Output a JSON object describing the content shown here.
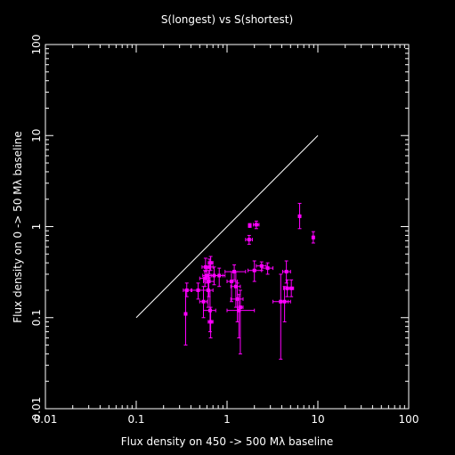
{
  "chart_data": {
    "type": "scatter",
    "title": "S(longest) vs S(shortest)",
    "xlabel": "Flux density on 450 -> 500 Mλ baseline",
    "ylabel": "Flux density on 0 -> 50 Mλ baseline",
    "x_scale": "log",
    "y_scale": "log",
    "xlim": [
      0.01,
      100
    ],
    "ylim": [
      0.01,
      100
    ],
    "x_ticks": [
      "0.01",
      "0.1",
      "1",
      "10",
      "100"
    ],
    "y_ticks": [
      "0.01",
      "0.1",
      "1",
      "10",
      "100"
    ],
    "reference_line": {
      "x": [
        0.1,
        10
      ],
      "y": [
        0.1,
        10
      ],
      "color": "#ffffff"
    },
    "marker_color": "#ff00ff",
    "background": "#000000",
    "foreground": "#ffffff",
    "points": [
      {
        "x": 6.3,
        "y": 1.3,
        "xerr": [
          6.2,
          6.4
        ],
        "yerr": [
          0.95,
          1.8
        ]
      },
      {
        "x": 8.9,
        "y": 0.76,
        "xerr": [
          8.7,
          9.1
        ],
        "yerr": [
          0.66,
          0.88
        ]
      },
      {
        "x": 2.1,
        "y": 1.05,
        "xerr": [
          1.95,
          2.25
        ],
        "yerr": [
          0.95,
          1.15
        ]
      },
      {
        "x": 1.78,
        "y": 1.03,
        "xerr": [
          1.72,
          1.84
        ],
        "yerr": [
          0.98,
          1.08
        ]
      },
      {
        "x": 1.75,
        "y": 0.72,
        "xerr": [
          1.6,
          1.9
        ],
        "yerr": [
          0.64,
          0.8
        ]
      },
      {
        "x": 2.4,
        "y": 0.37,
        "xerr": [
          2.1,
          2.7
        ],
        "yerr": [
          0.33,
          0.41
        ]
      },
      {
        "x": 2.0,
        "y": 0.33,
        "xerr": [
          1.7,
          2.4
        ],
        "yerr": [
          0.25,
          0.42
        ]
      },
      {
        "x": 2.8,
        "y": 0.35,
        "xerr": [
          2.4,
          3.2
        ],
        "yerr": [
          0.3,
          0.4
        ]
      },
      {
        "x": 4.5,
        "y": 0.32,
        "xerr": [
          4.1,
          5.0
        ],
        "yerr": [
          0.24,
          0.42
        ]
      },
      {
        "x": 4.6,
        "y": 0.21,
        "xerr": [
          4.2,
          5.1
        ],
        "yerr": [
          0.17,
          0.26
        ]
      },
      {
        "x": 5.1,
        "y": 0.21,
        "xerr": [
          4.7,
          5.4
        ],
        "yerr": [
          0.17,
          0.26
        ]
      },
      {
        "x": 3.9,
        "y": 0.15,
        "xerr": [
          3.2,
          4.7
        ],
        "yerr": [
          0.035,
          0.3
        ]
      },
      {
        "x": 4.3,
        "y": 0.15,
        "xerr": [
          3.8,
          5.0
        ],
        "yerr": [
          0.09,
          0.22
        ]
      },
      {
        "x": 0.35,
        "y": 0.11,
        "xerr": [
          0.34,
          0.36
        ],
        "yerr": [
          0.05,
          0.2
        ]
      },
      {
        "x": 0.36,
        "y": 0.2,
        "xerr": [
          0.33,
          0.41
        ],
        "yerr": [
          0.17,
          0.24
        ]
      },
      {
        "x": 0.48,
        "y": 0.2,
        "xerr": [
          0.4,
          0.55
        ],
        "yerr": [
          0.16,
          0.24
        ]
      },
      {
        "x": 0.55,
        "y": 0.15,
        "xerr": [
          0.5,
          0.6
        ],
        "yerr": [
          0.1,
          0.22
        ]
      },
      {
        "x": 0.57,
        "y": 0.27,
        "xerr": [
          0.5,
          0.65
        ],
        "yerr": [
          0.22,
          0.33
        ]
      },
      {
        "x": 0.58,
        "y": 0.36,
        "xerr": [
          0.53,
          0.63
        ],
        "yerr": [
          0.32,
          0.45
        ]
      },
      {
        "x": 0.6,
        "y": 0.29,
        "xerr": [
          0.54,
          0.67
        ],
        "yerr": [
          0.24,
          0.35
        ]
      },
      {
        "x": 0.62,
        "y": 0.2,
        "xerr": [
          0.55,
          0.7
        ],
        "yerr": [
          0.13,
          0.28
        ]
      },
      {
        "x": 0.63,
        "y": 0.25,
        "xerr": [
          0.55,
          0.72
        ],
        "yerr": [
          0.17,
          0.33
        ]
      },
      {
        "x": 0.64,
        "y": 0.36,
        "xerr": [
          0.58,
          0.7
        ],
        "yerr": [
          0.3,
          0.44
        ]
      },
      {
        "x": 0.65,
        "y": 0.12,
        "xerr": [
          0.55,
          0.75
        ],
        "yerr": [
          0.07,
          0.2
        ]
      },
      {
        "x": 0.66,
        "y": 0.09,
        "xerr": [
          0.62,
          0.7
        ],
        "yerr": [
          0.06,
          0.13
        ]
      },
      {
        "x": 0.66,
        "y": 0.4,
        "xerr": [
          0.62,
          0.7
        ],
        "yerr": [
          0.33,
          0.47
        ]
      },
      {
        "x": 0.72,
        "y": 0.29,
        "xerr": [
          0.6,
          0.9
        ],
        "yerr": [
          0.23,
          0.36
        ]
      },
      {
        "x": 0.82,
        "y": 0.29,
        "xerr": [
          0.72,
          0.95
        ],
        "yerr": [
          0.22,
          0.35
        ]
      },
      {
        "x": 1.12,
        "y": 0.25,
        "xerr": [
          1.0,
          1.3
        ],
        "yerr": [
          0.15,
          0.32
        ]
      },
      {
        "x": 1.2,
        "y": 0.32,
        "xerr": [
          0.95,
          1.6
        ],
        "yerr": [
          0.26,
          0.38
        ]
      },
      {
        "x": 1.25,
        "y": 0.22,
        "xerr": [
          1.1,
          1.4
        ],
        "yerr": [
          0.13,
          0.32
        ]
      },
      {
        "x": 1.3,
        "y": 0.16,
        "xerr": [
          1.1,
          1.5
        ],
        "yerr": [
          0.09,
          0.24
        ]
      },
      {
        "x": 1.35,
        "y": 0.12,
        "xerr": [
          1.0,
          2.0
        ],
        "yerr": [
          0.06,
          0.18
        ]
      },
      {
        "x": 1.4,
        "y": 0.13,
        "xerr": [
          1.3,
          1.5
        ],
        "yerr": [
          0.04,
          0.2
        ]
      }
    ]
  }
}
